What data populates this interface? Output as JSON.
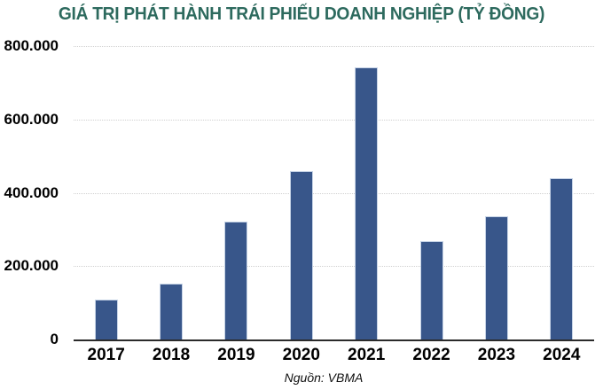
{
  "title": "GIÁ TRỊ PHÁT HÀNH TRÁI PHIẾU DOANH NGHIỆP (TỶ ĐỒNG)",
  "source": "Nguồn: VBMA",
  "colors": {
    "title": "#2D6A5E",
    "bar": "#38568A",
    "bar_border": "#C6D3E6",
    "gridline": "#D0D0D0",
    "axis": "#2B2B2B",
    "label": "#000000"
  },
  "chart_data": {
    "type": "bar",
    "title": "GIÁ TRỊ PHÁT HÀNH TRÁI PHIẾU DOANH NGHIỆP (TỶ ĐỒNG)",
    "categories": [
      "2017",
      "2018",
      "2019",
      "2020",
      "2021",
      "2022",
      "2023",
      "2024"
    ],
    "values": [
      108000,
      152000,
      322000,
      460000,
      742000,
      268000,
      335000,
      441000
    ],
    "xlabel": "",
    "ylabel": "",
    "ylim": [
      0,
      800000
    ],
    "yticks": [
      0,
      200000,
      400000,
      600000,
      800000
    ],
    "ytick_labels": [
      "0",
      "200.000",
      "400.000",
      "600.000",
      "800.000"
    ],
    "grid": "horizontal-dotted",
    "legend": "none",
    "source": "Nguồn: VBMA"
  }
}
